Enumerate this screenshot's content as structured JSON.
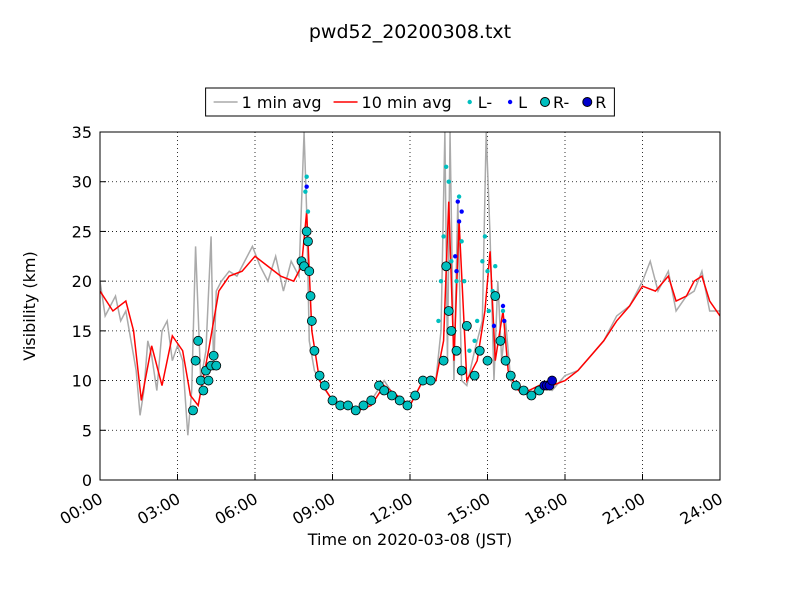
{
  "chart_data": {
    "type": "line",
    "title": "pwd52_20200308.txt",
    "xlabel": "Time on 2020-03-08 (JST)",
    "ylabel": "Visibility (km)",
    "xlim": [
      0,
      24
    ],
    "ylim": [
      0,
      35
    ],
    "xticks": [
      {
        "value": 0,
        "label": "00:00"
      },
      {
        "value": 3,
        "label": "03:00"
      },
      {
        "value": 6,
        "label": "06:00"
      },
      {
        "value": 9,
        "label": "09:00"
      },
      {
        "value": 12,
        "label": "12:00"
      },
      {
        "value": 15,
        "label": "15:00"
      },
      {
        "value": 18,
        "label": "18:00"
      },
      {
        "value": 21,
        "label": "21:00"
      },
      {
        "value": 24,
        "label": "24:00"
      }
    ],
    "yticks": [
      0,
      5,
      10,
      15,
      20,
      25,
      30,
      35
    ],
    "grid": true,
    "legend": "upper center",
    "series": [
      {
        "name": "1 min avg",
        "color": "#aaaaaa",
        "style": "line",
        "x": [
          0,
          0.2,
          0.4,
          0.6,
          0.8,
          1,
          1.2,
          1.4,
          1.55,
          1.7,
          1.85,
          2,
          2.2,
          2.4,
          2.6,
          2.8,
          3,
          3.2,
          3.4,
          3.55,
          3.7,
          3.9,
          4.1,
          4.3,
          4.4,
          4.5,
          4.7,
          5,
          5.3,
          5.6,
          5.9,
          6.2,
          6.5,
          6.8,
          7.1,
          7.4,
          7.7,
          7.9,
          8,
          8.1,
          8.3,
          8.6,
          9,
          9.5,
          10,
          10.5,
          11,
          11.5,
          12,
          12.5,
          13,
          13.2,
          13.35,
          13.45,
          13.55,
          13.7,
          13.85,
          14,
          14.2,
          14.5,
          14.8,
          14.95,
          15.1,
          15.25,
          15.4,
          15.55,
          15.7,
          15.9,
          16.2,
          16.6,
          17,
          17.5,
          18,
          18.5,
          19,
          19.5,
          20,
          20.5,
          21,
          21.3,
          21.6,
          22,
          22.3,
          22.7,
          23,
          23.3,
          23.6,
          24
        ],
        "values": [
          20,
          16.5,
          17.5,
          18.5,
          16,
          17,
          14,
          11,
          6.5,
          9,
          14,
          12.5,
          9,
          15,
          16,
          12,
          13.5,
          12,
          4.5,
          9,
          23.5,
          10,
          13,
          24.5,
          11,
          19,
          20,
          21,
          20.5,
          22,
          23.5,
          21.5,
          20,
          22.5,
          19,
          22,
          20.5,
          35,
          27,
          14,
          11,
          9.5,
          8,
          7.5,
          7,
          8,
          10,
          8,
          7.5,
          10,
          10,
          15,
          35,
          12,
          35,
          10,
          28,
          10,
          9.5,
          13,
          16,
          35,
          24.5,
          10,
          20,
          12,
          16,
          10,
          9,
          8.5,
          9.5,
          9,
          10.5,
          11,
          12.5,
          14,
          16.5,
          17.5,
          20,
          22,
          19,
          21,
          17,
          18.5,
          19,
          21,
          17,
          17
        ]
      },
      {
        "name": "10 min avg",
        "color": "#ff0000",
        "style": "line",
        "x": [
          0,
          0.5,
          1,
          1.3,
          1.6,
          2,
          2.4,
          2.8,
          3.2,
          3.5,
          3.8,
          4.2,
          4.6,
          5,
          5.5,
          6,
          6.5,
          7,
          7.5,
          7.8,
          8,
          8.2,
          8.5,
          9,
          9.5,
          10,
          10.5,
          11,
          11.5,
          12,
          12.5,
          13,
          13.3,
          13.5,
          13.7,
          13.9,
          14.2,
          14.6,
          14.9,
          15.1,
          15.3,
          15.6,
          15.8,
          16.2,
          16.6,
          17,
          17.5,
          18,
          18.5,
          19,
          19.5,
          20,
          20.5,
          21,
          21.5,
          22,
          22.3,
          22.7,
          23,
          23.3,
          23.6,
          24
        ],
        "values": [
          19,
          17,
          18,
          15,
          8,
          13.5,
          9.5,
          14.5,
          13,
          8.5,
          7.5,
          13,
          19,
          20.5,
          21,
          22.5,
          21.5,
          20.5,
          20,
          21.5,
          27,
          15,
          10,
          8,
          7.5,
          7,
          7.5,
          9.5,
          8.5,
          7.5,
          10,
          10,
          14,
          28,
          12,
          26,
          10,
          12,
          17,
          23,
          12,
          17,
          11,
          9,
          9,
          9.5,
          9.5,
          10,
          11,
          12.5,
          14,
          16,
          17.5,
          19.5,
          19,
          20.5,
          18,
          18.5,
          20,
          20.5,
          18,
          16.5
        ]
      },
      {
        "name": "L-",
        "color": "#00bfbf",
        "style": "dot",
        "x": [
          7.95,
          8.0,
          8.05,
          13.1,
          13.2,
          13.3,
          13.4,
          13.5,
          13.6,
          13.8,
          13.9,
          14.0,
          14.1,
          14.3,
          14.5,
          14.6,
          14.8,
          14.9,
          15.0,
          15.05,
          15.2,
          15.3,
          15.6
        ],
        "values": [
          29,
          30.5,
          27,
          16,
          20,
          24.5,
          31.5,
          30,
          22,
          20,
          28.5,
          24,
          20,
          13,
          14,
          16,
          22,
          24.5,
          21,
          17,
          19,
          21.5,
          17
        ]
      },
      {
        "name": "L",
        "color": "#0000ff",
        "style": "dot",
        "x": [
          8.0,
          13.75,
          13.8,
          13.85,
          13.9,
          14.0,
          15.25,
          15.45,
          15.6,
          15.65
        ],
        "values": [
          29.5,
          22.5,
          21,
          28,
          26,
          27,
          15.5,
          14,
          17.5,
          16
        ]
      },
      {
        "name": "R-",
        "color": "#00bfbf",
        "style": "circle",
        "x": [
          3.6,
          3.7,
          3.8,
          3.9,
          4.0,
          4.1,
          4.2,
          4.3,
          4.4,
          4.5,
          7.8,
          7.9,
          8.0,
          8.05,
          8.1,
          8.15,
          8.2,
          8.3,
          8.5,
          8.7,
          9.0,
          9.3,
          9.6,
          9.9,
          10.2,
          10.5,
          10.8,
          11.0,
          11.3,
          11.6,
          11.9,
          12.2,
          12.5,
          12.8,
          13.3,
          13.4,
          13.5,
          13.6,
          13.8,
          14.0,
          14.2,
          14.5,
          14.7,
          15.0,
          15.3,
          15.5,
          15.7,
          15.9,
          16.1,
          16.4,
          16.7,
          17.0
        ],
        "values": [
          7,
          12,
          14,
          10,
          9,
          11,
          10,
          11.5,
          12.5,
          11.5,
          22,
          21.5,
          25,
          24,
          21,
          18.5,
          16,
          13,
          10.5,
          9.5,
          8,
          7.5,
          7.5,
          7,
          7.5,
          8,
          9.5,
          9,
          8.5,
          8,
          7.5,
          8.5,
          10,
          10,
          12,
          21.5,
          17,
          15,
          13,
          11,
          15.5,
          10.5,
          13,
          12,
          18.5,
          14,
          12,
          10.5,
          9.5,
          9,
          8.5,
          9
        ]
      },
      {
        "name": "R",
        "color": "#0000cc",
        "style": "circle",
        "x": [
          17.2,
          17.3,
          17.4,
          17.5
        ],
        "values": [
          9.5,
          9.5,
          9.5,
          10
        ]
      }
    ]
  }
}
